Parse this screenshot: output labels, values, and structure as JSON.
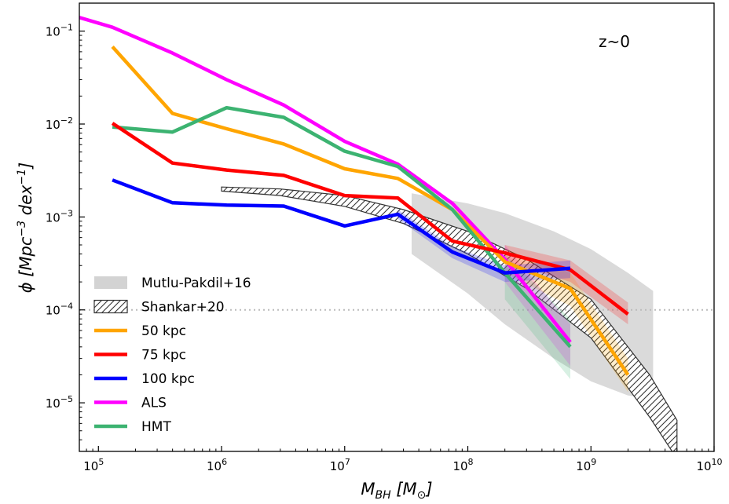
{
  "chart_data": {
    "type": "line",
    "xscale": "log",
    "yscale": "log",
    "xlim": [
      70000,
      10000000000
    ],
    "ylim": [
      3e-06,
      0.2
    ],
    "xlabel": "M_BH [M_⊙]",
    "ylabel": "ϕ [Mpc^-3 dex^-1]",
    "x_ticks": [
      100000,
      1000000,
      10000000,
      100000000,
      1000000000,
      10000000000
    ],
    "x_tick_labels": [
      {
        "base": "10",
        "exp": "5"
      },
      {
        "base": "10",
        "exp": "6"
      },
      {
        "base": "10",
        "exp": "7"
      },
      {
        "base": "10",
        "exp": "8"
      },
      {
        "base": "10",
        "exp": "9"
      },
      {
        "base": "10",
        "exp": "10"
      }
    ],
    "y_ticks": [
      1e-05,
      0.0001,
      0.001,
      0.01,
      0.1
    ],
    "y_tick_labels": [
      {
        "base": "10",
        "exp": "−5"
      },
      {
        "base": "10",
        "exp": "−4"
      },
      {
        "base": "10",
        "exp": "−3"
      },
      {
        "base": "10",
        "exp": "−2"
      },
      {
        "base": "10",
        "exp": "−1"
      }
    ],
    "annotation": "z~0",
    "reference_line": {
      "y": 0.0001,
      "style": "dotted",
      "color": "#bbbbbb"
    },
    "grid": false,
    "legend_position": "lower-left",
    "legend": [
      {
        "label": "Mutlu-Pakdil+16",
        "kind": "band",
        "color": "#d3d3d3"
      },
      {
        "label": "Shankar+20",
        "kind": "hatch",
        "color": "#333333"
      },
      {
        "label": "50 kpc",
        "kind": "line",
        "color": "#ffa500"
      },
      {
        "label": "75 kpc",
        "kind": "line",
        "color": "#ff0000"
      },
      {
        "label": "100 kpc",
        "kind": "line",
        "color": "#0000ff"
      },
      {
        "label": "ALS",
        "kind": "line",
        "color": "#ff00ff"
      },
      {
        "label": "HMT",
        "kind": "line",
        "color": "#3cb371"
      }
    ],
    "bands": [
      {
        "name": "Mutlu-Pakdil+16",
        "color": "#d3d3d3",
        "x": [
          35000000,
          100000000,
          200000000,
          500000000,
          1000000000,
          2000000000,
          3200000000
        ],
        "low": [
          0.0004,
          0.00015,
          7e-05,
          3e-05,
          1.7e-05,
          1.2e-05,
          1.1e-05
        ],
        "high": [
          0.0018,
          0.0014,
          0.0011,
          0.0007,
          0.00045,
          0.00025,
          0.00016
        ]
      }
    ],
    "hatched_bands": [
      {
        "name": "Shankar+20",
        "color": "#333333",
        "x": [
          1000000,
          3000000,
          10000000,
          30000000,
          100000000,
          300000000,
          1000000000,
          3000000000,
          5000000000
        ],
        "low": [
          0.0019,
          0.0017,
          0.0013,
          0.00085,
          0.0004,
          0.00017,
          5e-05,
          7e-06,
          2.5e-06
        ],
        "high": [
          0.0021,
          0.002,
          0.0017,
          0.0012,
          0.0007,
          0.00035,
          0.00013,
          2e-05,
          6.5e-06
        ]
      }
    ],
    "series": [
      {
        "name": "ALS",
        "color": "#ff00ff",
        "x": [
          70000,
          130000,
          400000,
          1100000,
          3200000,
          10000000,
          27000000,
          75000000,
          200000000,
          680000000
        ],
        "y": [
          0.14,
          0.11,
          0.058,
          0.03,
          0.016,
          0.0065,
          0.0037,
          0.0014,
          0.00035,
          4.5e-05
        ],
        "band_low": [
          null,
          null,
          null,
          null,
          null,
          null,
          null,
          null,
          0.0002,
          2.5e-05
        ],
        "band_high": [
          null,
          null,
          null,
          null,
          null,
          null,
          null,
          null,
          0.0005,
          7e-05
        ]
      },
      {
        "name": "50 kpc",
        "color": "#ffa500",
        "x": [
          130000,
          400000,
          1100000,
          3200000,
          10000000,
          27000000,
          75000000,
          200000000,
          680000000,
          2000000000
        ],
        "y": [
          0.068,
          0.013,
          0.0089,
          0.0061,
          0.0033,
          0.0026,
          0.0012,
          0.00033,
          0.00017,
          2e-05
        ],
        "band_low": [
          null,
          null,
          null,
          null,
          null,
          null,
          null,
          0.00025,
          0.00011,
          1.3e-05
        ],
        "band_high": [
          null,
          null,
          null,
          null,
          null,
          null,
          null,
          0.00045,
          0.00025,
          3e-05
        ]
      },
      {
        "name": "HMT",
        "color": "#3cb371",
        "x": [
          130000,
          400000,
          1100000,
          3200000,
          10000000,
          27000000,
          75000000,
          200000000,
          680000000
        ],
        "y": [
          0.0093,
          0.0082,
          0.015,
          0.0118,
          0.0051,
          0.0035,
          0.0012,
          0.00025,
          4e-05
        ],
        "band_low": [
          null,
          null,
          null,
          null,
          null,
          null,
          null,
          0.00013,
          1.8e-05
        ],
        "band_high": [
          null,
          null,
          null,
          null,
          null,
          null,
          null,
          0.0004,
          8e-05
        ]
      },
      {
        "name": "75 kpc",
        "color": "#ff0000",
        "x": [
          130000,
          400000,
          1100000,
          3200000,
          10000000,
          27000000,
          75000000,
          200000000,
          680000000,
          2000000000
        ],
        "y": [
          0.0102,
          0.0038,
          0.0032,
          0.0028,
          0.0017,
          0.0016,
          0.00055,
          0.00041,
          0.00027,
          9e-05
        ],
        "band_low": [
          null,
          null,
          null,
          null,
          null,
          null,
          null,
          0.00033,
          0.0002,
          7e-05
        ],
        "band_high": [
          null,
          null,
          null,
          null,
          null,
          null,
          null,
          0.0005,
          0.00034,
          0.00012
        ]
      },
      {
        "name": "100 kpc",
        "color": "#0000ff",
        "x": [
          130000,
          400000,
          1100000,
          3200000,
          10000000,
          27000000,
          75000000,
          200000000,
          680000000
        ],
        "y": [
          0.0025,
          0.00142,
          0.00134,
          0.00131,
          0.0008,
          0.00107,
          0.00042,
          0.00025,
          0.00028
        ],
        "band_low": [
          null,
          null,
          null,
          null,
          null,
          0.00095,
          0.00036,
          0.0002,
          0.00022
        ],
        "band_high": [
          null,
          null,
          null,
          null,
          null,
          0.0012,
          0.00048,
          0.0003,
          0.00034
        ]
      }
    ]
  }
}
